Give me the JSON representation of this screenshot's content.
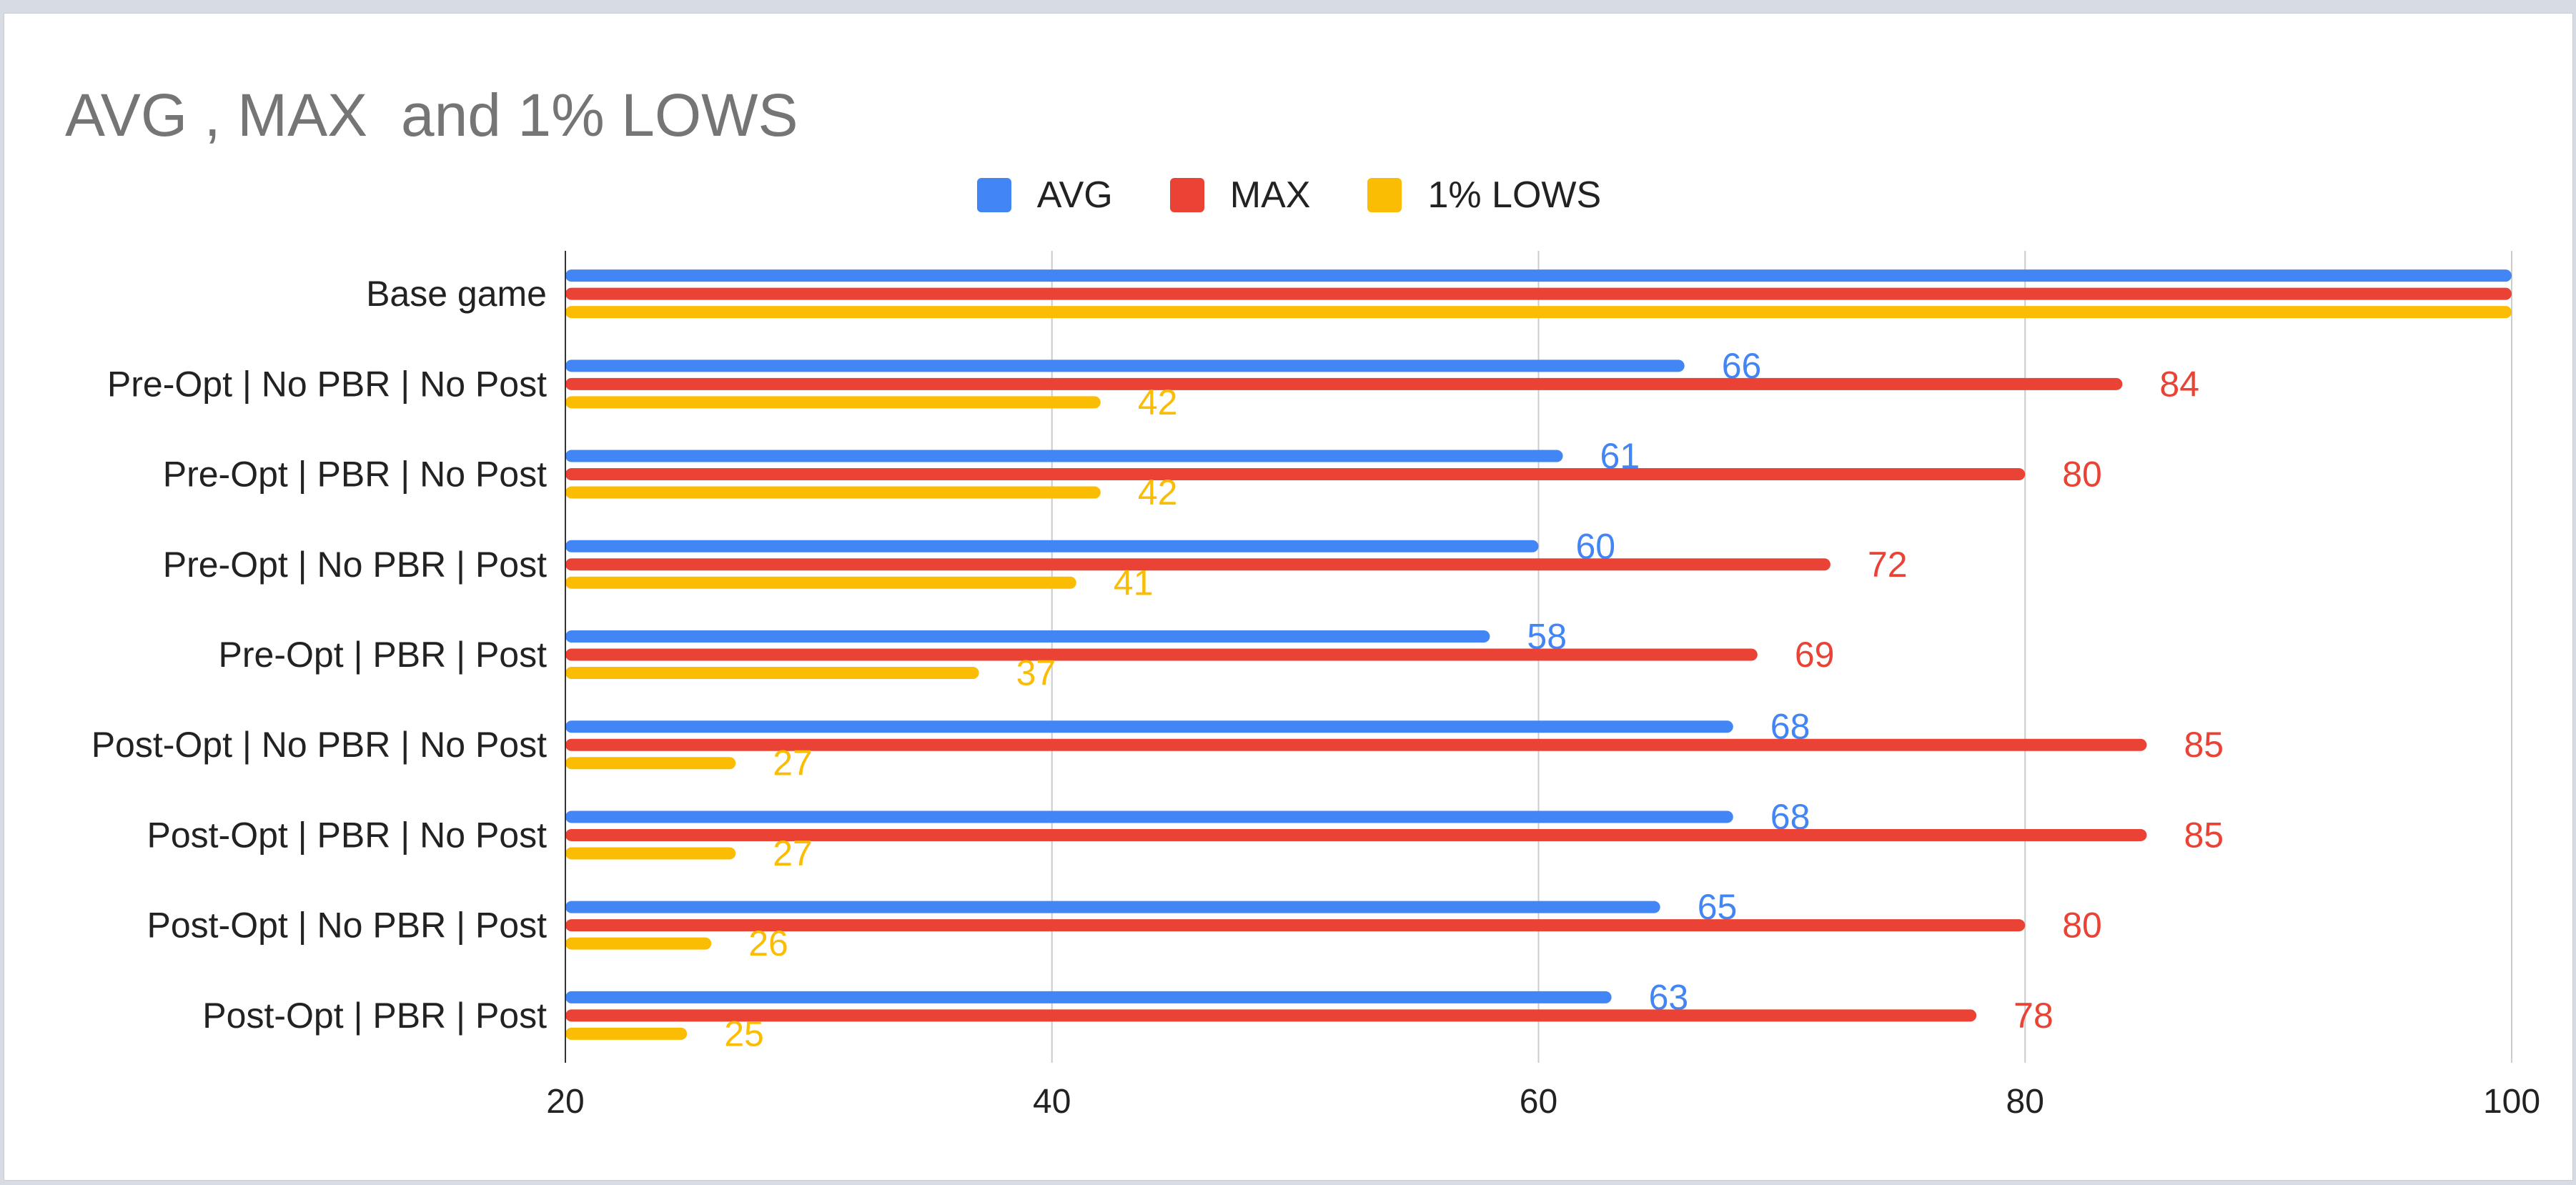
{
  "chart_data": {
    "type": "bar",
    "orientation": "horizontal",
    "title": "AVG , MAX  and 1% LOWS",
    "legend_position": "top-center",
    "xlim": [
      20,
      100
    ],
    "x_ticks": [
      20,
      40,
      60,
      80,
      100
    ],
    "grid": true,
    "categories": [
      "Base game",
      "Pre-Opt | No PBR | No Post",
      "Pre-Opt | PBR | No Post",
      "Pre-Opt | No PBR | Post",
      "Pre-Opt | PBR | Post",
      "Post-Opt | No PBR | No Post",
      "Post-Opt |  PBR | No Post",
      "Post-Opt | No PBR | Post",
      "Post-Opt | PBR | Post"
    ],
    "series": [
      {
        "name": "AVG",
        "color": "#4285f4",
        "values": [
          100,
          66,
          61,
          60,
          58,
          68,
          68,
          65,
          63
        ],
        "labels": [
          "",
          "66",
          "61",
          "60",
          "58",
          "68",
          "68",
          "65",
          "63"
        ]
      },
      {
        "name": "MAX",
        "color": "#ea4335",
        "values": [
          100,
          84,
          80,
          72,
          69,
          85,
          85,
          80,
          78
        ],
        "labels": [
          "",
          "84",
          "80",
          "72",
          "69",
          "85",
          "85",
          "80",
          "78"
        ]
      },
      {
        "name": "1% LOWS",
        "color": "#fbbc04",
        "values": [
          100,
          42,
          42,
          41,
          37,
          27,
          27,
          26,
          25
        ],
        "labels": [
          "",
          "42",
          "42",
          "41",
          "37",
          "27",
          "27",
          "26",
          "25"
        ]
      }
    ]
  }
}
